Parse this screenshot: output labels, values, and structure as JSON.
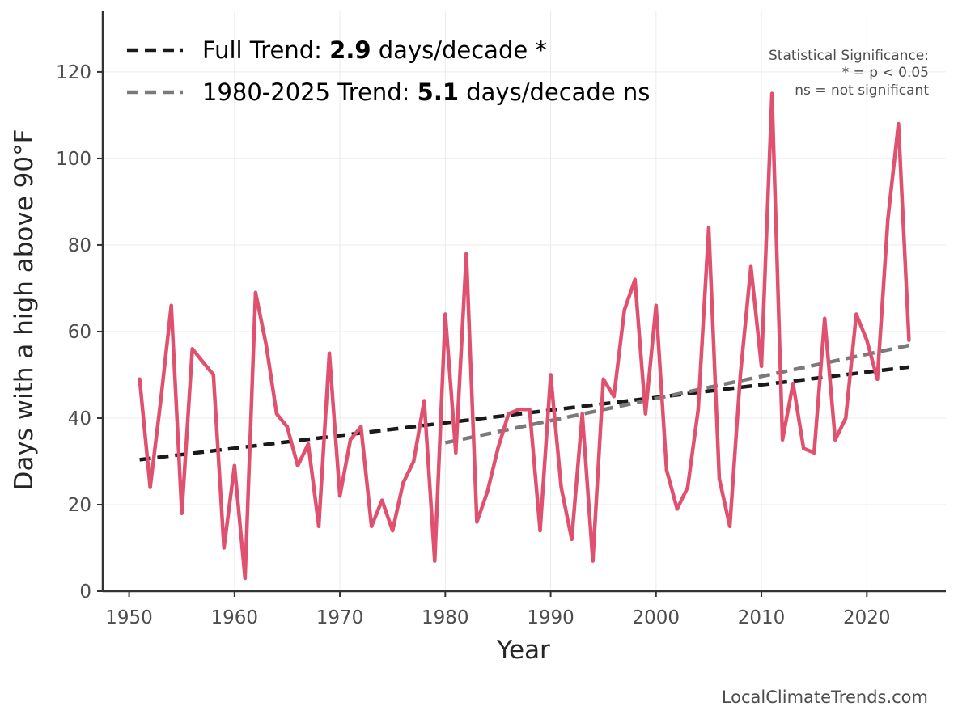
{
  "chart_data": {
    "type": "line",
    "title": "",
    "xlabel": "Year",
    "ylabel": "Days with a high above 90°F",
    "xlim": [
      1947.5,
      2027.5
    ],
    "ylim": [
      0,
      134
    ],
    "grid": true,
    "x_ticks": [
      1950,
      1960,
      1970,
      1980,
      1990,
      2000,
      2010,
      2020
    ],
    "y_ticks": [
      0,
      20,
      40,
      60,
      80,
      100,
      120
    ],
    "series": [
      {
        "name": "Days with a high above 90°F",
        "color": "#e0506f",
        "x": [
          1951,
          1952,
          1953,
          1954,
          1955,
          1956,
          1957,
          1958,
          1959,
          1960,
          1961,
          1962,
          1963,
          1964,
          1965,
          1966,
          1967,
          1968,
          1969,
          1970,
          1971,
          1972,
          1973,
          1974,
          1975,
          1976,
          1977,
          1978,
          1979,
          1980,
          1981,
          1982,
          1983,
          1984,
          1985,
          1986,
          1987,
          1988,
          1989,
          1990,
          1991,
          1992,
          1993,
          1994,
          1995,
          1996,
          1997,
          1998,
          1999,
          2000,
          2001,
          2002,
          2003,
          2004,
          2005,
          2006,
          2007,
          2008,
          2009,
          2010,
          2011,
          2012,
          2013,
          2014,
          2015,
          2016,
          2017,
          2018,
          2019,
          2020,
          2021,
          2022,
          2023,
          2024
        ],
        "values": [
          49,
          24,
          44,
          66,
          18,
          56,
          53,
          50,
          10,
          29,
          3,
          69,
          57,
          41,
          38,
          29,
          34,
          15,
          55,
          22,
          35,
          38,
          15,
          21,
          14,
          25,
          30,
          44,
          7,
          64,
          32,
          78,
          16,
          23,
          33,
          41,
          42,
          42,
          14,
          50,
          24,
          12,
          41,
          7,
          49,
          45,
          65,
          72,
          41,
          66,
          28,
          19,
          24,
          42,
          84,
          26,
          15,
          50,
          75,
          52,
          115,
          35,
          48,
          33,
          32,
          63,
          35,
          40,
          64,
          58,
          49,
          86,
          108,
          58
        ]
      }
    ],
    "trend_lines": [
      {
        "name": "Full Trend",
        "color": "#1a1a1a",
        "style": "dashed",
        "x": [
          1951,
          2024
        ],
        "values": [
          30.4,
          51.8
        ]
      },
      {
        "name": "1980-2025 Trend",
        "color": "#7a7a7a",
        "style": "dashed",
        "x": [
          1980,
          2024
        ],
        "values": [
          34.3,
          56.8
        ]
      }
    ],
    "legend": {
      "position": "top-left",
      "entries": [
        {
          "prefix": "Full Trend: ",
          "value": "2.9",
          "suffix": " days/decade *",
          "color": "#1a1a1a"
        },
        {
          "prefix": "1980-2025 Trend: ",
          "value": "5.1",
          "suffix": " days/decade ns",
          "color": "#7a7a7a"
        }
      ]
    },
    "annotations": {
      "significance": [
        "Statistical Significance:",
        "* = p < 0.05",
        "ns = not significant"
      ],
      "caption": "LocalClimateTrends.com"
    }
  }
}
